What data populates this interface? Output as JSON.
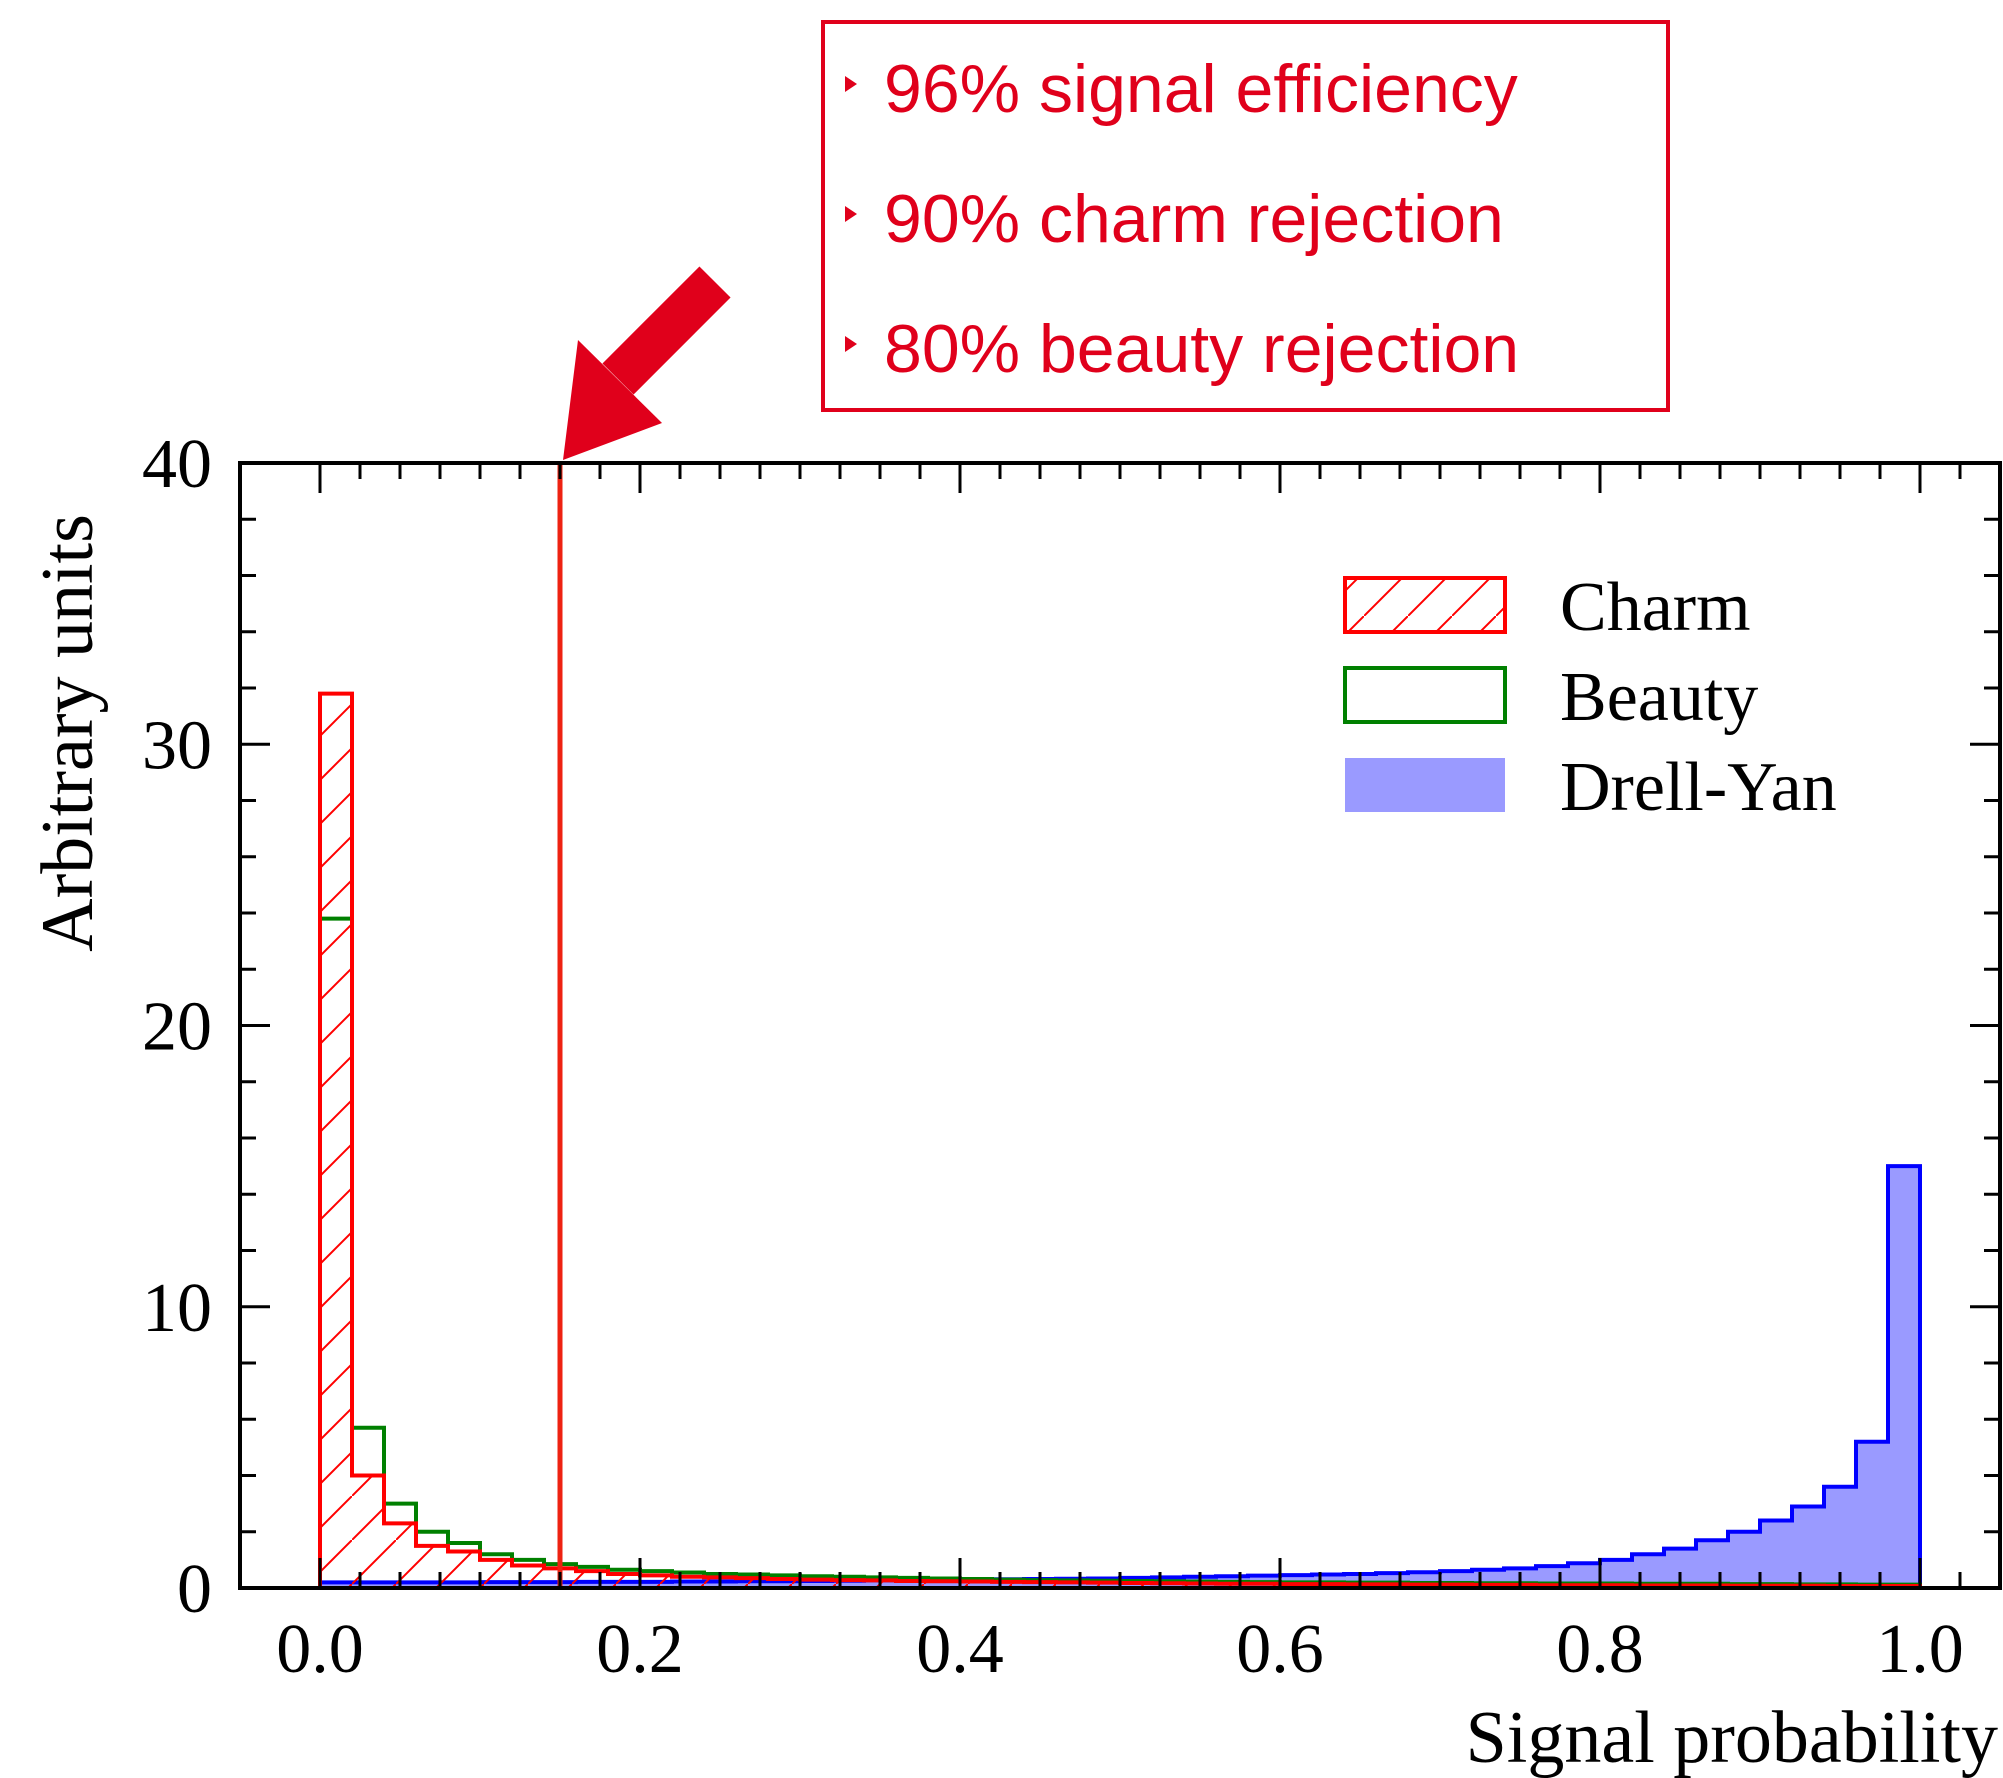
{
  "chart_data": {
    "type": "bar",
    "title": "",
    "xlabel": "Signal probability",
    "ylabel": "Arbitrary units",
    "xlim": [
      -0.05,
      1.05
    ],
    "ylim": [
      0,
      40
    ],
    "x_ticks": [
      "0.0",
      "0.2",
      "0.4",
      "0.6",
      "0.8",
      "1.0"
    ],
    "y_ticks": [
      "0",
      "10",
      "20",
      "30",
      "40"
    ],
    "bin_width": 0.02,
    "bin_start": 0.0,
    "series": [
      {
        "name": "Charm",
        "style": "hatched-outline",
        "color": "#ff0000",
        "values": [
          31.8,
          4.0,
          2.3,
          1.5,
          1.3,
          1.0,
          0.8,
          0.7,
          0.6,
          0.5,
          0.45,
          0.4,
          0.38,
          0.35,
          0.32,
          0.3,
          0.28,
          0.27,
          0.25,
          0.24,
          0.23,
          0.22,
          0.21,
          0.2,
          0.19,
          0.18,
          0.17,
          0.16,
          0.15,
          0.15,
          0.14,
          0.14,
          0.13,
          0.13,
          0.12,
          0.12,
          0.11,
          0.11,
          0.1,
          0.1,
          0.1,
          0.09,
          0.09,
          0.09,
          0.08,
          0.08,
          0.08,
          0.07,
          0.07,
          0.07
        ]
      },
      {
        "name": "Beauty",
        "style": "outline",
        "color": "#008000",
        "values": [
          23.8,
          5.7,
          3.0,
          2.0,
          1.6,
          1.2,
          1.0,
          0.85,
          0.75,
          0.65,
          0.6,
          0.55,
          0.5,
          0.48,
          0.45,
          0.42,
          0.4,
          0.38,
          0.36,
          0.34,
          0.32,
          0.3,
          0.28,
          0.27,
          0.26,
          0.25,
          0.24,
          0.23,
          0.22,
          0.21,
          0.2,
          0.2,
          0.19,
          0.19,
          0.18,
          0.18,
          0.17,
          0.17,
          0.16,
          0.16,
          0.16,
          0.15,
          0.15,
          0.15,
          0.14,
          0.14,
          0.13,
          0.13,
          0.12,
          0.12
        ]
      },
      {
        "name": "Drell-Yan",
        "style": "filled",
        "color": "#0000ff",
        "fill": "#9a9aff",
        "values": [
          0.2,
          0.2,
          0.2,
          0.2,
          0.2,
          0.21,
          0.21,
          0.21,
          0.22,
          0.22,
          0.22,
          0.23,
          0.23,
          0.24,
          0.24,
          0.25,
          0.26,
          0.27,
          0.28,
          0.29,
          0.3,
          0.31,
          0.32,
          0.33,
          0.34,
          0.36,
          0.38,
          0.4,
          0.42,
          0.44,
          0.46,
          0.48,
          0.5,
          0.53,
          0.56,
          0.6,
          0.65,
          0.7,
          0.78,
          0.88,
          1.0,
          1.2,
          1.4,
          1.7,
          2.0,
          2.4,
          2.9,
          3.6,
          5.2,
          15.0
        ]
      }
    ],
    "cut_line": {
      "x": 0.15,
      "color": "#ee2211"
    },
    "legend_position": "top-right",
    "grid": false
  },
  "annotation_box": {
    "color": "#e0001b",
    "lines": [
      "96% signal efficiency",
      "90% charm rejection",
      "80% beauty rejection"
    ]
  }
}
